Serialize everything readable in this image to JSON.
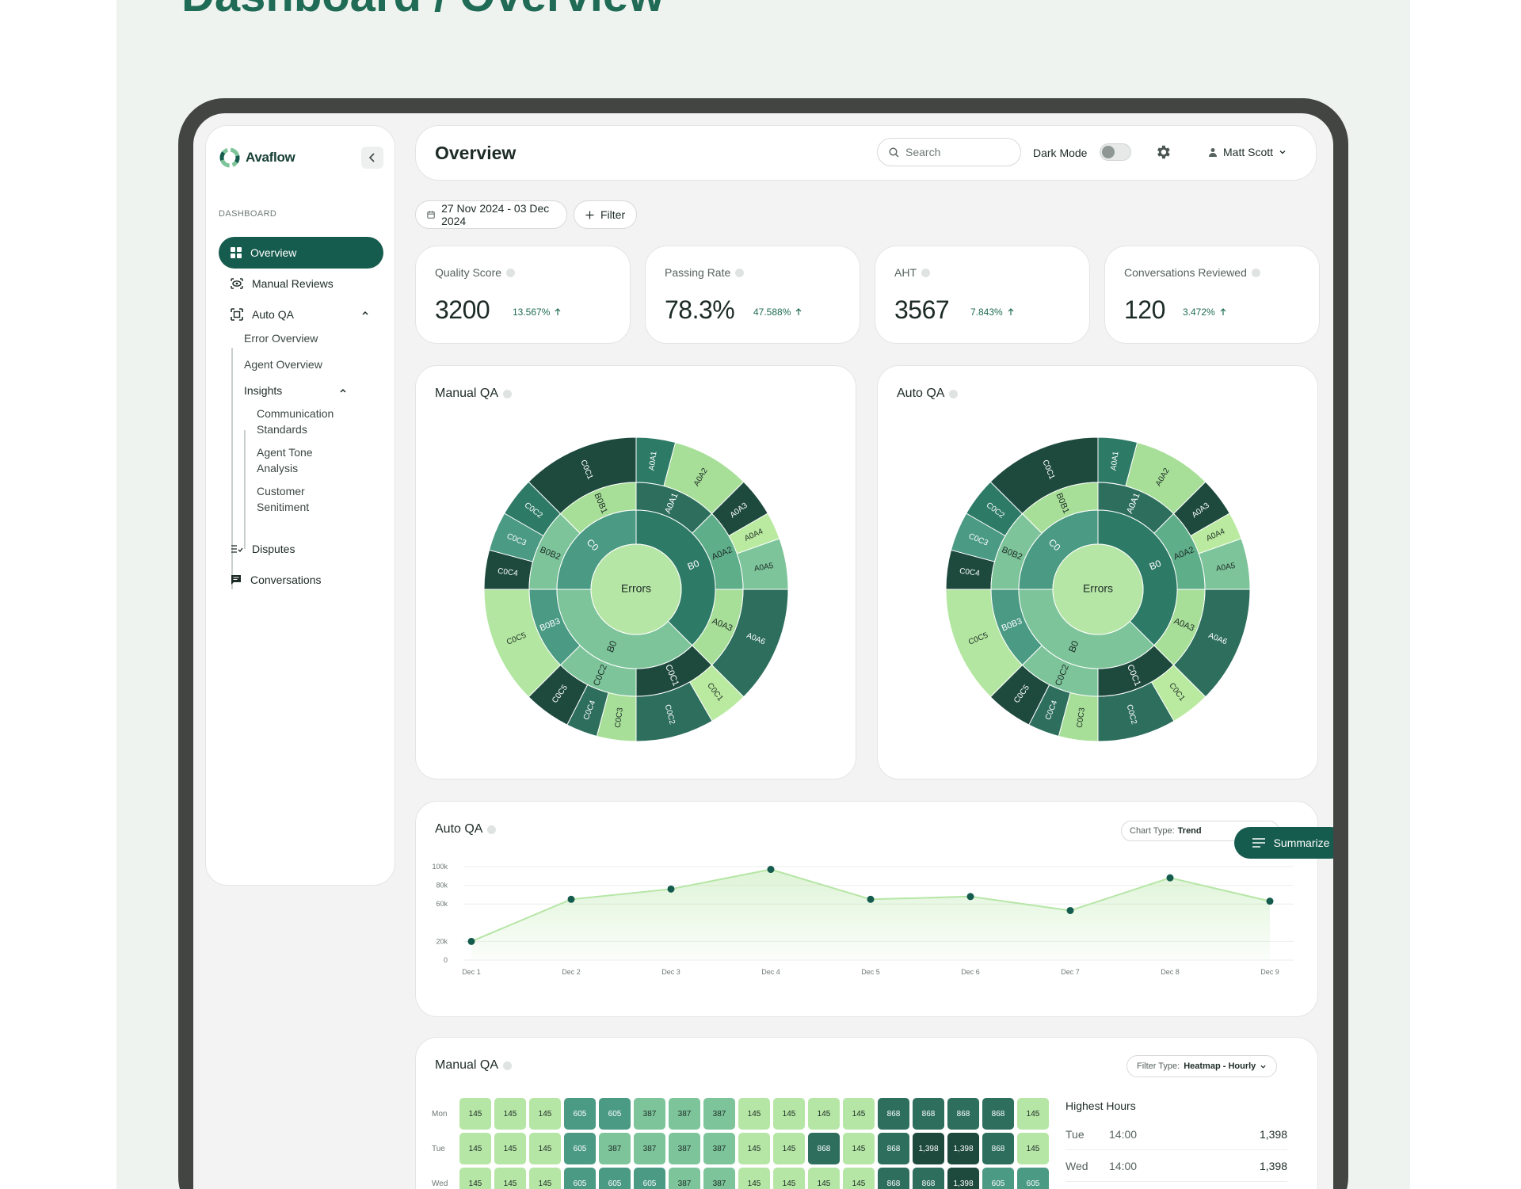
{
  "page_heading": "Dashboard / Overview",
  "colors": {
    "brand": "#165c4e",
    "accent": "#1f6b55",
    "light": "#b6e6a6",
    "dark": "#1e4a3e"
  },
  "sidebar": {
    "logo": "Avaflow",
    "section": "DASHBOARD",
    "items": [
      {
        "label": "Overview",
        "icon": "grid-icon",
        "active": true
      },
      {
        "label": "Manual Reviews",
        "icon": "eye-icon"
      },
      {
        "label": "Auto QA",
        "icon": "scan-icon",
        "expanded": true
      },
      {
        "label": "Disputes",
        "icon": "list-check-icon"
      },
      {
        "label": "Conversations",
        "icon": "chat-icon"
      }
    ],
    "auto_qa_sub": [
      "Error Overview",
      "Agent Overview",
      "Insights"
    ],
    "insights_sub": [
      "Communication Standards",
      "Agent Tone Analysis",
      "Customer Senitiment"
    ]
  },
  "topbar": {
    "title": "Overview",
    "search_placeholder": "Search",
    "dark_mode_label": "Dark Mode",
    "dark_mode_on": false,
    "user": "Matt Scott"
  },
  "toolbar": {
    "date_range": "27 Nov 2024 - 03 Dec 2024",
    "filter_label": "Filter"
  },
  "kpis": [
    {
      "label": "Quality Score",
      "value": "3200",
      "delta": "13.567%"
    },
    {
      "label": "Passing Rate",
      "value": "78.3%",
      "delta": "47.588%"
    },
    {
      "label": "AHT",
      "value": "3567",
      "delta": "7.843%"
    },
    {
      "label": "Conversations Reviewed",
      "value": "120",
      "delta": "3.472%"
    }
  ],
  "sunbursts": [
    {
      "title": "Manual QA"
    },
    {
      "title": "Auto QA"
    }
  ],
  "sunburst_data": {
    "center": "Errors",
    "ring1": [
      {
        "label": "B0",
        "value": 3,
        "color": "#2d7a66"
      },
      {
        "label": "B0",
        "value": 3,
        "color": "#7dc49a"
      },
      {
        "label": "C0",
        "value": 2,
        "color": "#4a9a84"
      }
    ],
    "ring2": [
      {
        "label": "A0A1",
        "value": 1,
        "color": "#2d6e5d"
      },
      {
        "label": "A0A2",
        "value": 1,
        "color": "#5fae8a"
      },
      {
        "label": "A0A3",
        "value": 1,
        "color": "#a7df98"
      },
      {
        "label": "C0C1",
        "value": 1,
        "color": "#1e4a3e"
      },
      {
        "label": "C0C2",
        "value": 1,
        "color": "#7dc49a"
      },
      {
        "label": "B0B3",
        "value": 1,
        "color": "#4a9a84"
      },
      {
        "label": "B0B2",
        "value": 1,
        "color": "#7dc49a"
      },
      {
        "label": "B0B1",
        "value": 1,
        "color": "#a7df98"
      }
    ],
    "ring3": [
      {
        "label": "A0A1",
        "value": 1,
        "color": "#2d7a66"
      },
      {
        "label": "A0A2",
        "value": 2,
        "color": "#a7df98"
      },
      {
        "label": "A0A3",
        "value": 1,
        "color": "#1e4a3e"
      },
      {
        "label": "A0A4",
        "value": 0.7,
        "color": "#b9ea9f"
      },
      {
        "label": "A0A5",
        "value": 1.3,
        "color": "#7dc49a"
      },
      {
        "label": "A0A6",
        "value": 3,
        "color": "#2d6e5d"
      },
      {
        "label": "C0C1",
        "value": 1,
        "color": "#b9ea9f"
      },
      {
        "label": "C0C2",
        "value": 2,
        "color": "#2d6e5d"
      },
      {
        "label": "C0C3",
        "value": 1,
        "color": "#a7df98"
      },
      {
        "label": "C0C4",
        "value": 0.8,
        "color": "#2d6e5d"
      },
      {
        "label": "C0C5",
        "value": 1.2,
        "color": "#1e4a3e"
      },
      {
        "label": "C0C5",
        "value": 3,
        "color": "#b3e6a0"
      },
      {
        "label": "C0C4",
        "value": 1,
        "color": "#1e4a3e"
      },
      {
        "label": "C0C3",
        "value": 1,
        "color": "#4a9a84"
      },
      {
        "label": "C0C2",
        "value": 1,
        "color": "#2d7a66"
      },
      {
        "label": "C0C1",
        "value": 3,
        "color": "#1e4a3e"
      }
    ]
  },
  "trend": {
    "title": "Auto QA",
    "chart_type_label": "Chart Type:",
    "chart_type_value": "Trend",
    "summarize": "Summarize"
  },
  "chart_data": {
    "type": "line",
    "title": "Auto QA",
    "x": [
      "Dec 1",
      "Dec 2",
      "Dec 3",
      "Dec 4",
      "Dec 5",
      "Dec 6",
      "Dec 7",
      "Dec 8",
      "Dec 9"
    ],
    "series": [
      {
        "values": [
          20000,
          65000,
          76000,
          97000,
          65000,
          68000,
          53000,
          88000,
          63000
        ]
      }
    ],
    "yticks": [
      "100k",
      "80k",
      "60k",
      "20k",
      "0"
    ],
    "ylim": [
      0,
      100000
    ],
    "grid": true
  },
  "heatmap": {
    "title": "Manual QA",
    "filter_label": "Filter Type:",
    "filter_value": "Heatmap - Hourly",
    "rows": [
      {
        "day": "Mon",
        "values": [
          "145",
          "145",
          "145",
          "605",
          "605",
          "387",
          "387",
          "387",
          "145",
          "145",
          "145",
          "145",
          "868",
          "868",
          "868",
          "868",
          "145"
        ]
      },
      {
        "day": "Tue",
        "values": [
          "145",
          "145",
          "145",
          "605",
          "387",
          "387",
          "387",
          "387",
          "145",
          "145",
          "868",
          "145",
          "868",
          "1,398",
          "1,398",
          "868",
          "145"
        ]
      },
      {
        "day": "Wed",
        "values": [
          "145",
          "145",
          "145",
          "605",
          "605",
          "605",
          "387",
          "387",
          "145",
          "145",
          "145",
          "145",
          "868",
          "868",
          "1,398",
          "605",
          "605"
        ]
      }
    ],
    "highest_title": "Highest Hours",
    "highest": [
      {
        "day": "Tue",
        "time": "14:00",
        "value": "1,398"
      },
      {
        "day": "Wed",
        "time": "14:00",
        "value": "1,398"
      }
    ]
  }
}
